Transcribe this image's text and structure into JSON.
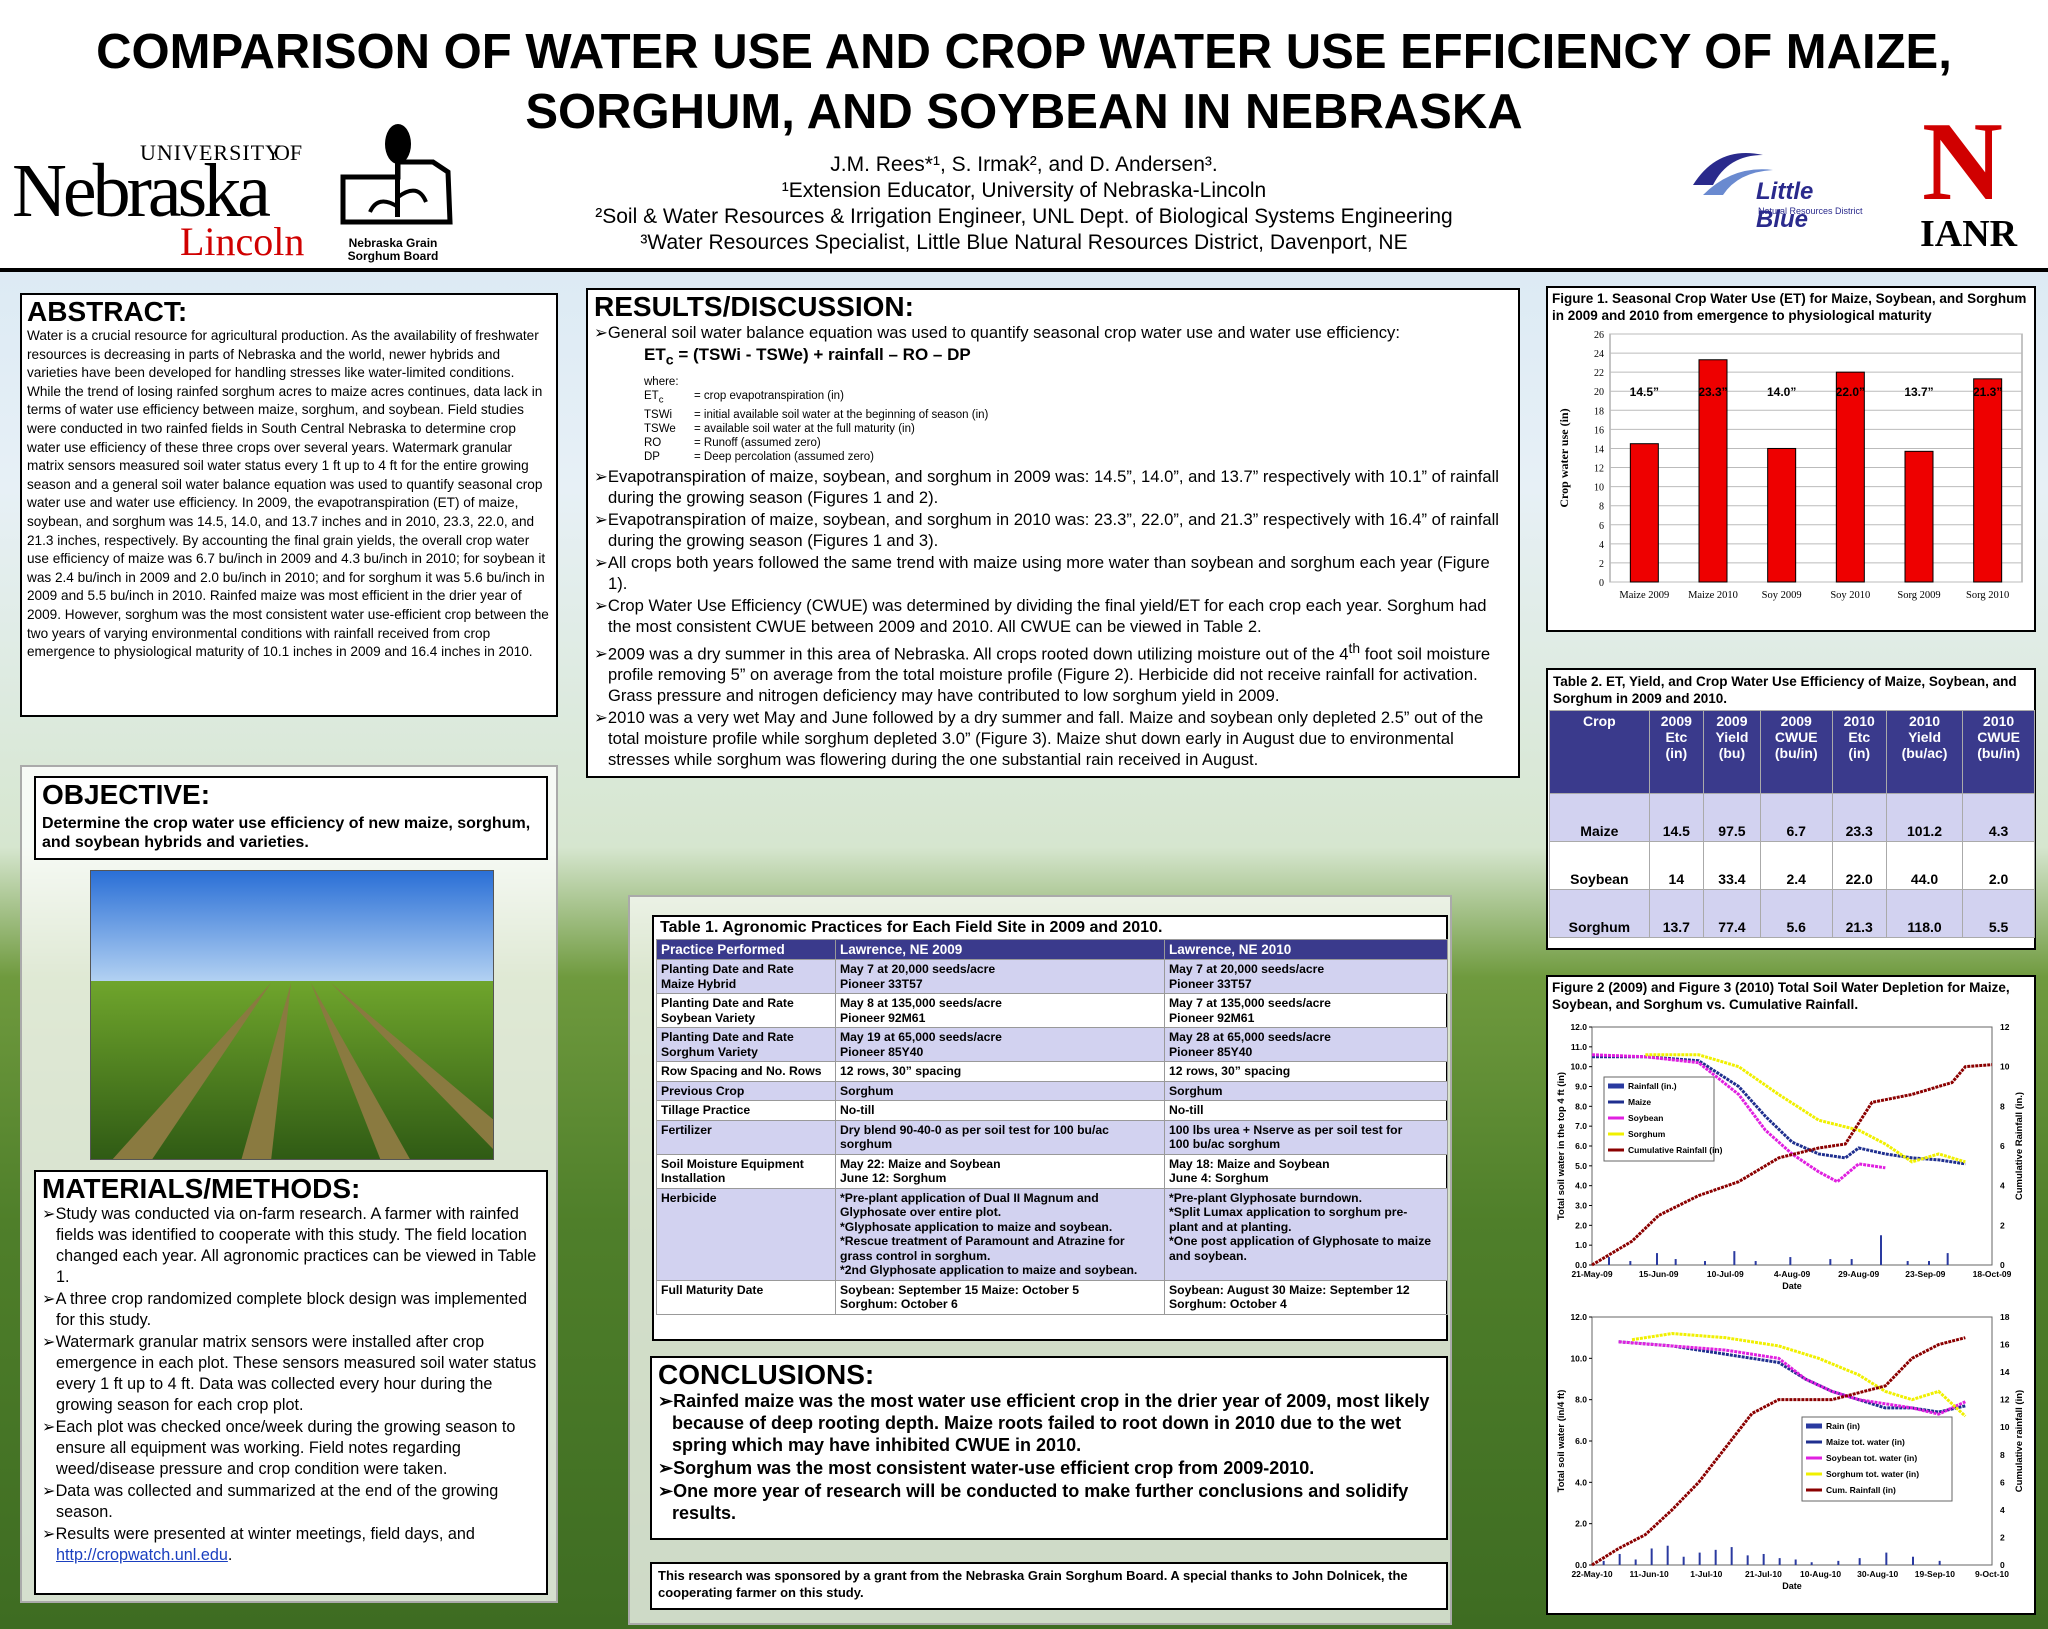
{
  "header": {
    "title_line1": "COMPARISON OF WATER USE AND CROP WATER USE EFFICIENCY OF MAIZE,",
    "title_line2": "SORGHUM, AND SOYBEAN IN NEBRASKA",
    "authors": "J.M. Rees*¹, S. Irmak², and D. Andersen³.",
    "aff1": "¹Extension Educator, University of Nebraska-Lincoln",
    "aff2": "²Soil & Water Resources & Irrigation Engineer, UNL Dept. of Biological Systems Engineering",
    "aff3": "³Water Resources Specialist, Little Blue Natural Resources District, Davenport, NE"
  },
  "logos": {
    "unl_university": "UNIVERSITY",
    "unl_of": "OF",
    "unl_nebraska": "Nebraska",
    "unl_lincoln": "Lincoln",
    "sorghum_board_line1": "Nebraska Grain",
    "sorghum_board_line2": "Sorghum Board",
    "little_blue": "Little Blue",
    "little_blue_sub": "Natural Resources District",
    "ianr_letter": "N",
    "ianr": "IANR",
    "brand_red": "#d00000",
    "brand_blue": "#2a2a8c"
  },
  "abstract": {
    "title": "ABSTRACT:",
    "text": "Water is a crucial resource for agricultural production.  As the availability of freshwater resources is decreasing in parts of Nebraska and the world, newer hybrids and varieties have been developed for handling stresses like water-limited conditions. While the trend of losing rainfed sorghum acres to maize acres continues, data lack in terms of water use efficiency between maize, sorghum, and soybean. Field studies were conducted in two rainfed fields in South Central Nebraska to determine crop water use efficiency of these three crops over several years.  Watermark granular matrix sensors measured soil water status every 1 ft up to 4 ft for the entire growing season and a general soil water balance equation was used to quantify seasonal crop water use and water use efficiency. In 2009, the evapotranspiration (ET) of maize, soybean, and sorghum was 14.5, 14.0, and 13.7 inches and in 2010, 23.3, 22.0, and 21.3 inches, respectively.  By accounting the final grain yields, the overall crop water use efficiency of maize was 6.7 bu/inch in 2009 and 4.3 bu/inch in 2010; for soybean it was 2.4 bu/inch in 2009 and 2.0 bu/inch in 2010; and for sorghum it was 5.6 bu/inch in 2009 and 5.5 bu/inch in 2010.  Rainfed maize was most efficient in the drier year of 2009.  However, sorghum was the most consistent water use-efficient crop between the two years of varying environmental conditions with rainfall received from crop emergence to physiological maturity of 10.1 inches in 2009 and 16.4 inches in 2010."
  },
  "objective": {
    "title": "OBJECTIVE:",
    "text": "Determine the crop water use efficiency of new maize, sorghum, and soybean hybrids and varieties."
  },
  "methods": {
    "title": "MATERIALS/METHODS:",
    "items": [
      "Study was conducted via on-farm research.  A farmer with rainfed fields was identified to cooperate with this study.  The field location changed each year.  All agronomic practices can be viewed in Table 1.",
      "A three crop randomized complete block design was implemented for this study.",
      "Watermark granular matrix sensors were installed after crop emergence in each plot.  These sensors measured soil water status every 1 ft up to 4 ft.  Data was collected every hour during the growing season for each crop plot.",
      "Each plot was checked once/week during the growing season to ensure all equipment was working.  Field notes regarding weed/disease pressure and crop condition were taken.",
      "Data was collected and summarized at the end of the growing season.",
      "Results were presented at winter meetings, field days, and"
    ],
    "link": "http://cropwatch.unl.edu",
    "link_after": "."
  },
  "results": {
    "title": "RESULTS/DISCUSSION:",
    "intro": "General soil water balance equation was used to quantify seasonal crop water use and water use efficiency:",
    "eq_et": "ET",
    "eq_sub": "c",
    "eq_rest": " = (TSWi - TSWe) + rainfall – RO – DP",
    "where": "where:",
    "defs": [
      {
        "sym": "ET",
        "sub": "c",
        "desc": "= crop evapotranspiration (in)"
      },
      {
        "sym": "TSWi",
        "sub": "",
        "desc": "= initial available soil water at the beginning of season (in)"
      },
      {
        "sym": "TSWe",
        "sub": "",
        "desc": "= available soil water at the full maturity (in)"
      },
      {
        "sym": "RO",
        "sub": "",
        "desc": "= Runoff (assumed zero)"
      },
      {
        "sym": "DP",
        "sub": "",
        "desc": "= Deep percolation (assumed zero)"
      }
    ],
    "b1": "Evapotranspiration of maize, soybean, and sorghum in 2009 was:  14.5”, 14.0”, and 13.7” respectively with 10.1” of rainfall during the growing season (Figures 1 and 2).",
    "b2": "Evapotranspiration of maize, soybean, and sorghum in 2010 was:  23.3”, 22.0”, and 21.3” respectively with 16.4” of rainfall during the growing season (Figures 1 and 3).",
    "b3": "All crops both years followed the same trend with maize using more water than soybean and sorghum each year (Figure 1).",
    "b4": "Crop Water Use Efficiency (CWUE) was determined by dividing the final yield/ET for each crop each year.  Sorghum had the most consistent CWUE between 2009 and 2010.  All CWUE can be viewed in Table 2.",
    "b5a": "2009 was a dry summer in this area of Nebraska.  All crops rooted down utilizing moisture out of the 4",
    "b5sup": "th",
    "b5b": " foot soil moisture profile removing 5” on average from the total moisture profile (Figure 2).  Herbicide did not receive rainfall for activation. Grass pressure and nitrogen deficiency may have contributed to low sorghum yield in 2009.",
    "b6": "2010 was a very wet May and June followed by a dry summer and fall.  Maize and soybean only depleted 2.5” out of the total moisture profile while sorghum depleted 3.0” (Figure 3).  Maize shut down early in August due to environmental stresses while sorghum was flowering during the one substantial rain received in August."
  },
  "table1": {
    "caption": "Table 1. Agronomic Practices for Each Field Site in 2009 and 2010.",
    "headers": [
      "Practice Performed",
      "Lawrence, NE 2009",
      "Lawrence, NE 2010"
    ],
    "rows": [
      [
        "Planting Date and Rate\nMaize Hybrid",
        "May 7 at 20,000 seeds/acre\nPioneer 33T57",
        "May 7 at 20,000 seeds/acre\nPioneer 33T57"
      ],
      [
        "Planting Date and Rate\nSoybean Variety",
        "May 8 at 135,000 seeds/acre\nPioneer 92M61",
        "May 7 at 135,000 seeds/acre\nPioneer 92M61"
      ],
      [
        "Planting Date and Rate\nSorghum Variety",
        "May 19 at 65,000 seeds/acre\nPioneer 85Y40",
        "May 28 at 65,000 seeds/acre\nPioneer 85Y40"
      ],
      [
        "Row Spacing and No. Rows",
        "12 rows, 30” spacing",
        "12 rows, 30” spacing"
      ],
      [
        "Previous Crop",
        "Sorghum",
        "Sorghum"
      ],
      [
        "Tillage Practice",
        "No-till",
        "No-till"
      ],
      [
        "Fertilizer",
        "Dry blend 90-40-0 as per soil test for 100 bu/ac\nsorghum",
        "100 lbs urea + Nserve as per soil test for\n100 bu/ac sorghum"
      ],
      [
        "Soil Moisture Equipment\nInstallation",
        "May 22: Maize and Soybean\nJune 12: Sorghum",
        "May 18: Maize and Soybean\nJune 4: Sorghum"
      ],
      [
        "Herbicide",
        "*Pre-plant application of Dual II Magnum and\n  Glyphosate over entire plot.\n*Glyphosate application to maize and soybean.\n*Rescue treatment of Paramount and Atrazine for\n  grass control in sorghum.\n*2nd Glyphosate application to maize and soybean.",
        "*Pre-plant Glyphosate burndown.\n*Split Lumax application to sorghum pre-\n  plant and at planting.\n*One post application of Glyphosate to maize\n  and soybean."
      ],
      [
        "Full Maturity Date",
        "Soybean: September 15    Maize: October 5\nSorghum: October 6",
        "Soybean: August 30   Maize: September 12\nSorghum: October 4"
      ]
    ]
  },
  "conclusions": {
    "title": "CONCLUSIONS:",
    "items": [
      "Rainfed maize was the most water use efficient crop in the drier year of 2009, most likely because of deep rooting depth.  Maize roots failed to root down in 2010 due to the wet spring which may have inhibited CWUE in 2010.",
      "Sorghum was the most consistent water-use efficient crop from 2009-2010.",
      "One more year of research will be conducted to make further conclusions and solidify results."
    ]
  },
  "acknowledgment": "This research was sponsored by a grant from the Nebraska Grain Sorghum Board.  A special thanks to John Dolnicek, the cooperating farmer on this study.",
  "figure1": {
    "caption": "Figure 1. Seasonal Crop Water Use (ET) for Maize, Soybean, and Sorghum in 2009 and 2010 from emergence to physiological maturity"
  },
  "table2": {
    "caption": "Table 2. ET, Yield, and Crop Water Use Efficiency of Maize, Soybean, and Sorghum in 2009 and 2010.",
    "headers": [
      "Crop",
      "2009\nEtc\n(in)",
      "2009\nYield\n(bu)",
      "2009\nCWUE\n(bu/in)",
      "2010\nEtc\n(in)",
      "2010\nYield\n(bu/ac)",
      "2010\nCWUE\n(bu/in)"
    ],
    "rows": [
      [
        "Maize",
        "14.5",
        "97.5",
        "6.7",
        "23.3",
        "101.2",
        "4.3"
      ],
      [
        "Soybean",
        "14",
        "33.4",
        "2.4",
        "22.0",
        "44.0",
        "2.0"
      ],
      [
        "Sorghum",
        "13.7",
        "77.4",
        "5.6",
        "21.3",
        "118.0",
        "5.5"
      ]
    ]
  },
  "figure23": {
    "caption": "Figure 2 (2009) and Figure 3 (2010) Total Soil Water Depletion for Maize, Soybean, and Sorghum vs. Cumulative Rainfall."
  },
  "chart_data": [
    {
      "type": "bar",
      "categories": [
        "Maize 2009",
        "Maize 2010",
        "Soy 2009",
        "Soy 2010",
        "Sorg 2009",
        "Sorg 2010"
      ],
      "values": [
        14.5,
        23.3,
        14.0,
        22.0,
        13.7,
        21.3
      ],
      "data_labels": [
        "14.5”",
        "23.3”",
        "14.0”",
        "22.0”",
        "13.7”",
        "21.3”"
      ],
      "ylabel": "Crop water use (in)",
      "ylim": [
        0,
        26
      ],
      "yticks": [
        0,
        2,
        4,
        6,
        8,
        10,
        12,
        14,
        16,
        18,
        20,
        22,
        24,
        26
      ],
      "bar_color": "#ee0000",
      "grid": true
    },
    {
      "type": "line",
      "xlabel": "Date",
      "ylabel": "Total soil water in the top 4 ft (in)",
      "y2label": "Cumulative Rainfall (in.)",
      "ylim": [
        0,
        12
      ],
      "y2lim": [
        0,
        12
      ],
      "yticks": [
        "0.0",
        "1.0",
        "2.0",
        "3.0",
        "4.0",
        "5.0",
        "6.0",
        "7.0",
        "8.0",
        "9.0",
        "10.0",
        "11.0",
        "12.0"
      ],
      "y2ticks": [
        "0",
        "2",
        "4",
        "6",
        "8",
        "10",
        "12"
      ],
      "xticks": [
        "21-May-09",
        "15-Jun-09",
        "10-Jul-09",
        "4-Aug-09",
        "29-Aug-09",
        "23-Sep-09",
        "18-Oct-09"
      ],
      "legend": [
        "Rainfall (in.)",
        "Maize",
        "Soybean",
        "Sorghum",
        "Cumulative Rainfall (in)"
      ],
      "series": [
        {
          "name": "Maize",
          "color": "#1f2f8f",
          "x_days": [
            0,
            20,
            40,
            55,
            65,
            75,
            85,
            95,
            100,
            110,
            120,
            130,
            140
          ],
          "values": [
            10.5,
            10.5,
            10.3,
            9.0,
            7.5,
            6.2,
            5.6,
            5.4,
            5.9,
            5.6,
            5.4,
            5.3,
            5.1
          ]
        },
        {
          "name": "Soybean",
          "color": "#e020e0",
          "x_days": [
            0,
            20,
            40,
            55,
            65,
            75,
            85,
            92,
            100,
            110
          ],
          "values": [
            10.6,
            10.5,
            10.2,
            8.6,
            6.8,
            5.6,
            4.7,
            4.2,
            5.1,
            4.9
          ]
        },
        {
          "name": "Sorghum",
          "color": "#f0f000",
          "x_days": [
            20,
            40,
            55,
            70,
            85,
            100,
            110,
            120,
            130,
            140
          ],
          "values": [
            10.6,
            10.6,
            10.0,
            8.6,
            7.3,
            6.8,
            6.1,
            5.2,
            5.6,
            5.2
          ]
        },
        {
          "name": "Cumulative Rainfall (in)",
          "color": "#8b0000",
          "axis": "y2",
          "x_days": [
            0,
            15,
            25,
            40,
            55,
            70,
            85,
            95,
            105,
            120,
            135,
            140,
            150
          ],
          "values": [
            0,
            1.2,
            2.5,
            3.5,
            4.2,
            5.4,
            5.9,
            6.1,
            8.2,
            8.6,
            9.2,
            10.0,
            10.1
          ]
        }
      ],
      "rain_x_days": [
        6,
        14,
        24,
        31,
        42,
        53,
        61,
        74,
        89,
        97,
        108,
        118,
        126,
        133
      ],
      "rain_values": [
        0.4,
        0.2,
        0.6,
        0.3,
        0.2,
        0.7,
        0.2,
        0.4,
        0.3,
        0.3,
        1.5,
        0.2,
        0.2,
        0.6
      ]
    },
    {
      "type": "line",
      "xlabel": "Date",
      "ylabel": "Total soil water (in/4 ft)",
      "y2label": "Cumulative rainfall (in)",
      "ylim": [
        0,
        12
      ],
      "y2lim": [
        0,
        18
      ],
      "yticks": [
        "0.0",
        "2.0",
        "4.0",
        "6.0",
        "8.0",
        "10.0",
        "12.0"
      ],
      "y2ticks": [
        "0",
        "2",
        "4",
        "6",
        "8",
        "10",
        "12",
        "14",
        "16",
        "18"
      ],
      "xticks": [
        "22-May-10",
        "11-Jun-10",
        "1-Jul-10",
        "21-Jul-10",
        "10-Aug-10",
        "30-Aug-10",
        "19-Sep-10",
        "9-Oct-10"
      ],
      "legend": [
        "Rain (in)",
        "Maize tot. water (in)",
        "Soybean tot. water (in)",
        "Sorghum tot. water (in)",
        "Cum. Rainfall (in)"
      ],
      "series": [
        {
          "name": "Maize tot. water (in)",
          "color": "#1f2f8f",
          "x_days": [
            10,
            30,
            50,
            70,
            80,
            90,
            100,
            110,
            120,
            130,
            140
          ],
          "values": [
            10.8,
            10.6,
            10.2,
            9.8,
            9.0,
            8.4,
            8.0,
            7.6,
            7.6,
            7.4,
            7.7
          ]
        },
        {
          "name": "Soybean tot. water (in)",
          "color": "#e020e0",
          "x_days": [
            10,
            30,
            50,
            70,
            80,
            90,
            100,
            110,
            120,
            130,
            140
          ],
          "values": [
            10.8,
            10.6,
            10.4,
            10.0,
            9.0,
            8.4,
            8.0,
            7.8,
            7.6,
            7.3,
            7.9
          ]
        },
        {
          "name": "Sorghum tot. water (in)",
          "color": "#f0f000",
          "x_days": [
            15,
            30,
            50,
            70,
            85,
            100,
            110,
            120,
            130,
            140
          ],
          "values": [
            10.9,
            11.2,
            11.0,
            10.6,
            10.0,
            9.2,
            8.4,
            8.0,
            8.4,
            7.2
          ]
        },
        {
          "name": "Cum. Rainfall (in)",
          "color": "#8b0000",
          "axis": "y2",
          "x_days": [
            0,
            10,
            20,
            30,
            40,
            50,
            60,
            70,
            80,
            90,
            100,
            110,
            120,
            130,
            140
          ],
          "values": [
            0,
            1.2,
            2.2,
            4.0,
            6.0,
            8.5,
            11.0,
            12.0,
            12.0,
            12.0,
            12.5,
            13.0,
            15.0,
            16.0,
            16.5
          ]
        }
      ],
      "rain_x_days": [
        4,
        10,
        16,
        22,
        28,
        34,
        40,
        46,
        52,
        58,
        64,
        70,
        76,
        82,
        92,
        100,
        110,
        120,
        130
      ],
      "rain_values": [
        0.3,
        0.8,
        0.4,
        1.2,
        1.4,
        0.6,
        0.9,
        1.1,
        1.3,
        0.7,
        0.8,
        0.5,
        0.4,
        0.2,
        0.3,
        0.5,
        0.9,
        0.6,
        0.3
      ]
    }
  ]
}
